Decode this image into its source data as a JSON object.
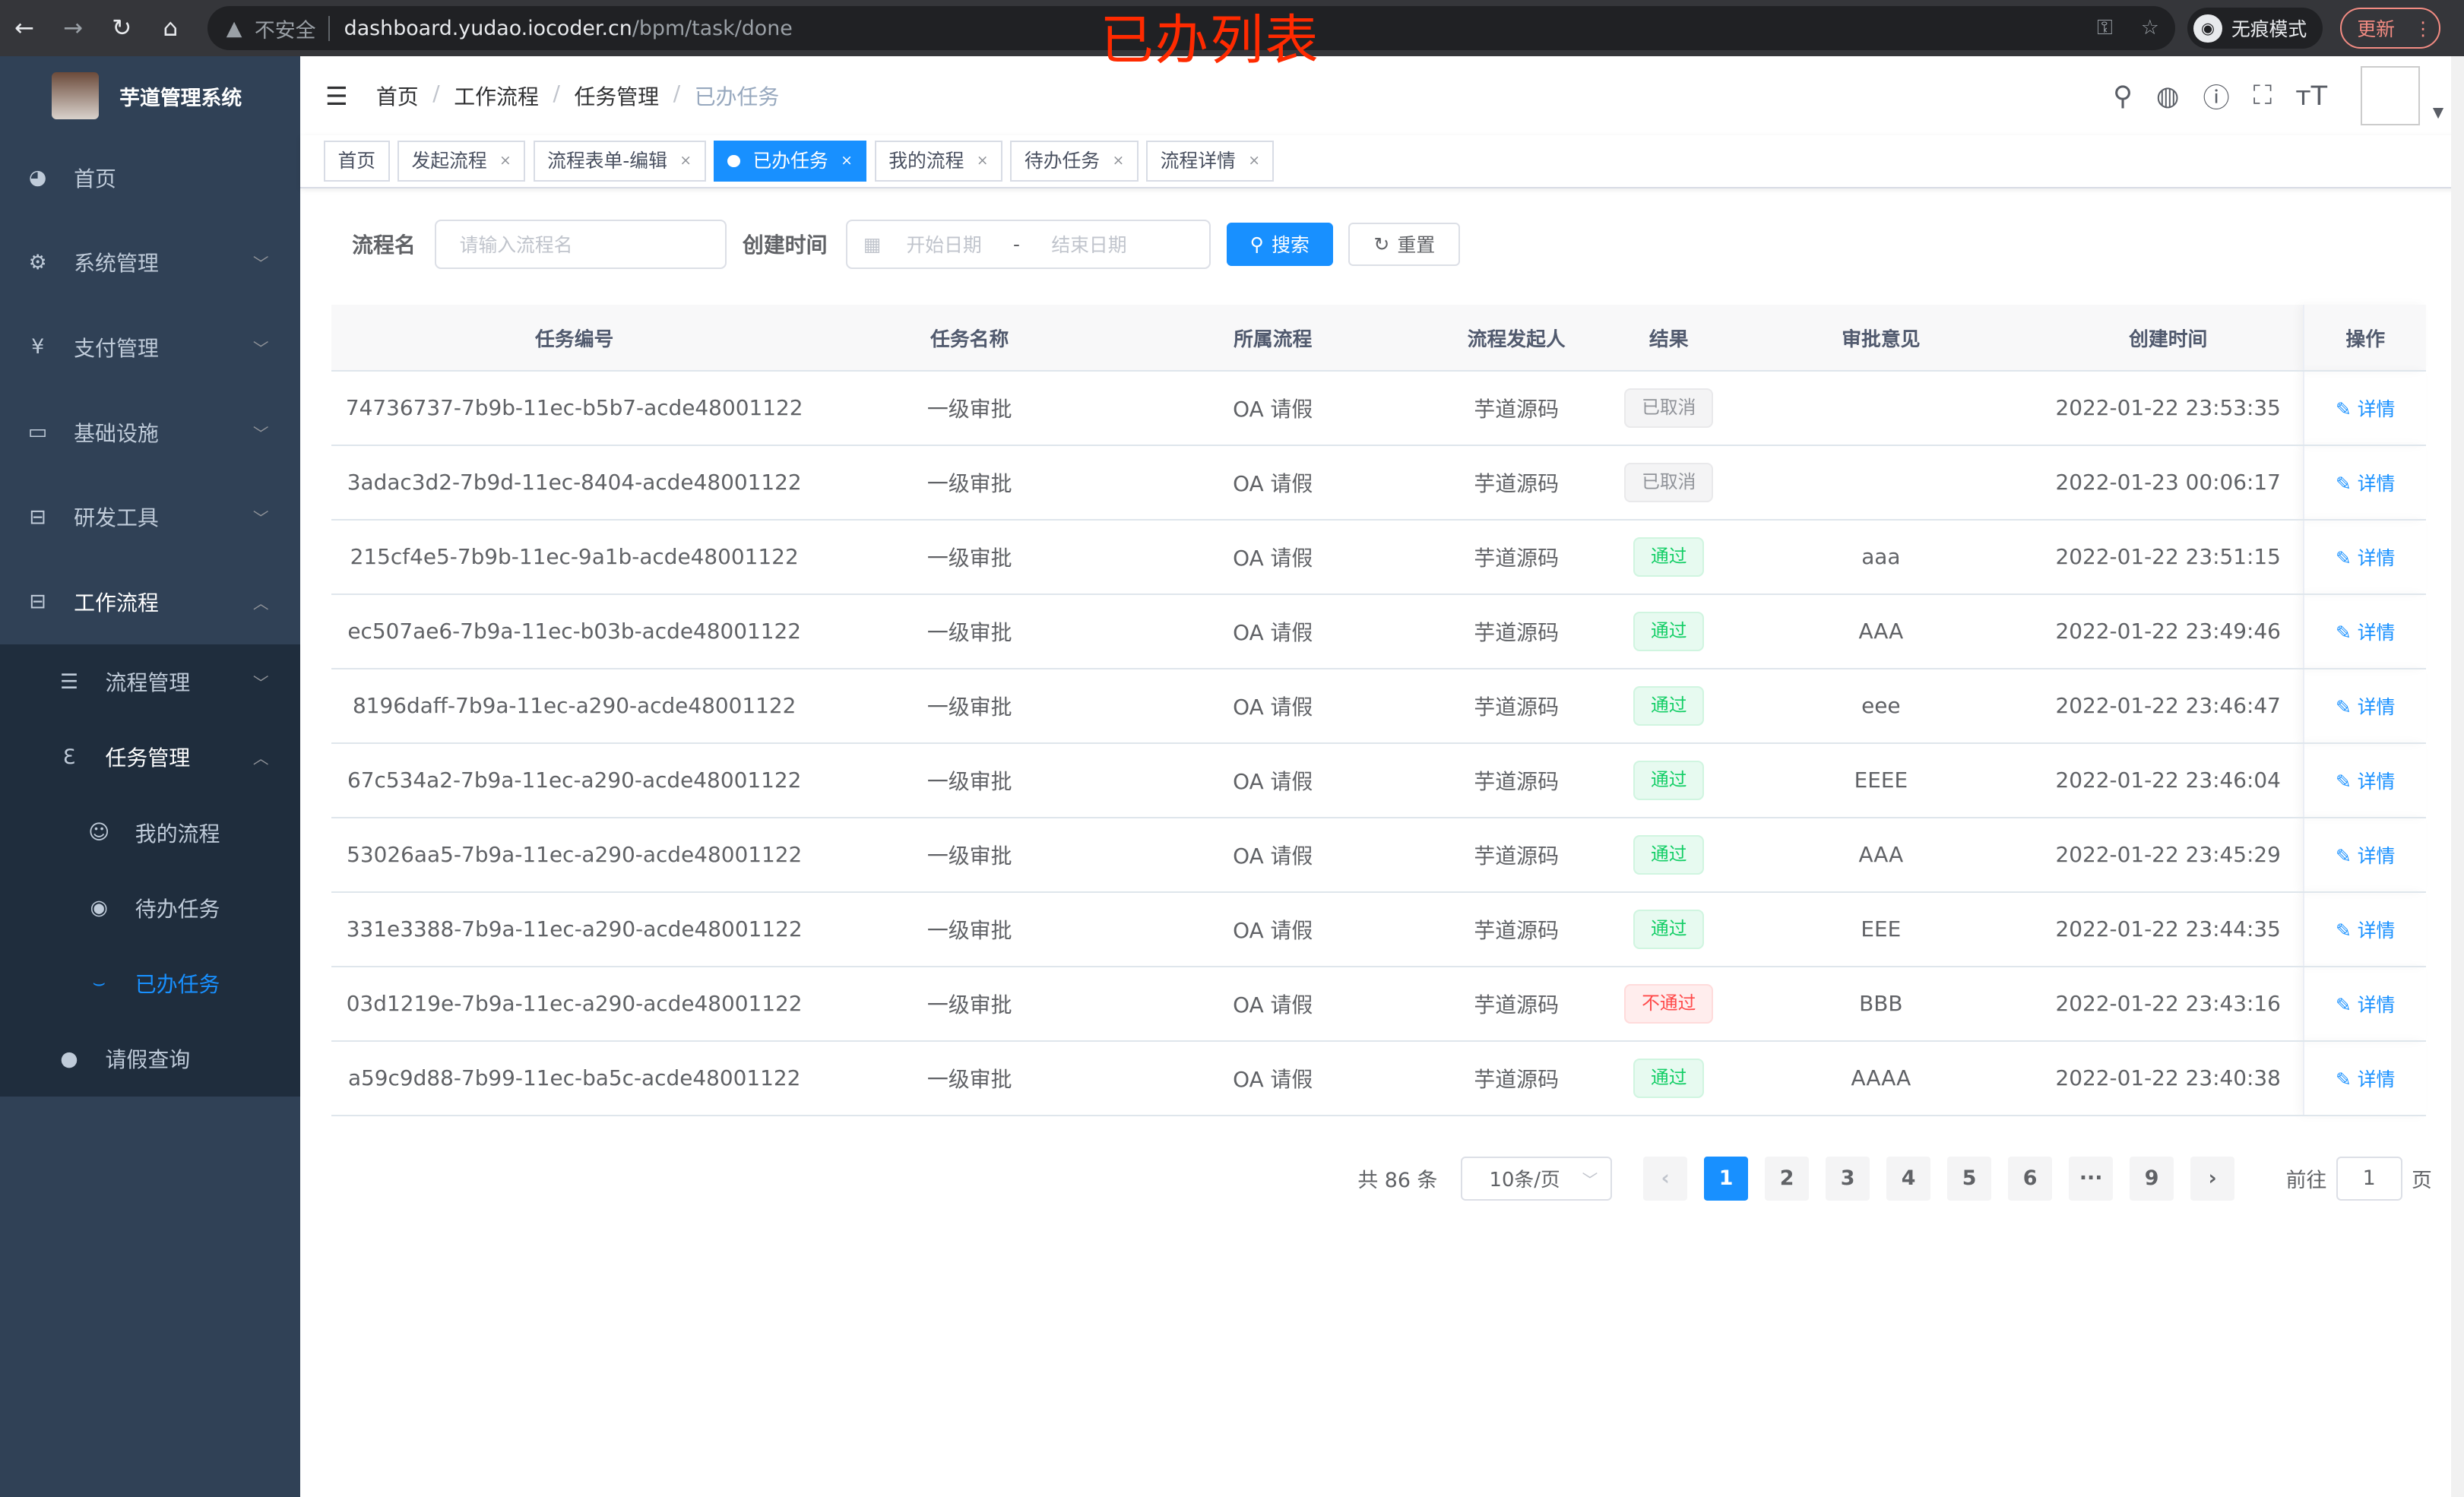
{
  "browser": {
    "insecure": "不安全",
    "host": "dashboard.yudao.iocoder.cn",
    "path": "/bpm/task/done",
    "incognito": "无痕模式",
    "update": "更新"
  },
  "overlay_title": "已办列表",
  "app_title": "芋道管理系统",
  "sidebar": {
    "items": [
      {
        "label": "首页",
        "icon": "dashboard-icon"
      },
      {
        "label": "系统管理",
        "icon": "gear-icon"
      },
      {
        "label": "支付管理",
        "icon": "yen-icon"
      },
      {
        "label": "基础设施",
        "icon": "monitor-icon"
      },
      {
        "label": "研发工具",
        "icon": "toolbox-icon"
      },
      {
        "label": "工作流程",
        "icon": "toolbox-icon"
      }
    ],
    "sub": [
      {
        "label": "流程管理",
        "icon": "list-icon"
      },
      {
        "label": "任务管理",
        "icon": "task-icon"
      },
      {
        "label": "我的流程",
        "icon": "chat-icon"
      },
      {
        "label": "待办任务",
        "icon": "eye-icon"
      },
      {
        "label": "已办任务",
        "icon": "eye-closed-icon"
      },
      {
        "label": "请假查询",
        "icon": "user-icon"
      }
    ]
  },
  "breadcrumb": [
    "首页",
    "工作流程",
    "任务管理",
    "已办任务"
  ],
  "tags": [
    "首页",
    "发起流程",
    "流程表单-编辑",
    "已办任务",
    "我的流程",
    "待办任务",
    "流程详情"
  ],
  "filter": {
    "name_label": "流程名",
    "name_placeholder": "请输入流程名",
    "time_label": "创建时间",
    "start_placeholder": "开始日期",
    "sep": "-",
    "end_placeholder": "结束日期",
    "search": "搜索",
    "reset": "重置"
  },
  "table": {
    "headers": [
      "任务编号",
      "任务名称",
      "所属流程",
      "流程发起人",
      "结果",
      "审批意见",
      "创建时间",
      "操作"
    ],
    "rows": [
      {
        "id": "74736737-7b9b-11ec-b5b7-acde48001122",
        "name": "一级审批",
        "process": "OA 请假",
        "starter": "芋道源码",
        "result": "已取消",
        "status": "cancel",
        "comment": "",
        "time": "2022-01-22 23:53:35",
        "action": "详情"
      },
      {
        "id": "3adac3d2-7b9d-11ec-8404-acde48001122",
        "name": "一级审批",
        "process": "OA 请假",
        "starter": "芋道源码",
        "result": "已取消",
        "status": "cancel",
        "comment": "",
        "time": "2022-01-23 00:06:17",
        "action": "详情"
      },
      {
        "id": "215cf4e5-7b9b-11ec-9a1b-acde48001122",
        "name": "一级审批",
        "process": "OA 请假",
        "starter": "芋道源码",
        "result": "通过",
        "status": "pass",
        "comment": "aaa",
        "time": "2022-01-22 23:51:15",
        "action": "详情"
      },
      {
        "id": "ec507ae6-7b9a-11ec-b03b-acde48001122",
        "name": "一级审批",
        "process": "OA 请假",
        "starter": "芋道源码",
        "result": "通过",
        "status": "pass",
        "comment": "AAA",
        "time": "2022-01-22 23:49:46",
        "action": "详情"
      },
      {
        "id": "8196daff-7b9a-11ec-a290-acde48001122",
        "name": "一级审批",
        "process": "OA 请假",
        "starter": "芋道源码",
        "result": "通过",
        "status": "pass",
        "comment": "eee",
        "time": "2022-01-22 23:46:47",
        "action": "详情"
      },
      {
        "id": "67c534a2-7b9a-11ec-a290-acde48001122",
        "name": "一级审批",
        "process": "OA 请假",
        "starter": "芋道源码",
        "result": "通过",
        "status": "pass",
        "comment": "EEEE",
        "time": "2022-01-22 23:46:04",
        "action": "详情"
      },
      {
        "id": "53026aa5-7b9a-11ec-a290-acde48001122",
        "name": "一级审批",
        "process": "OA 请假",
        "starter": "芋道源码",
        "result": "通过",
        "status": "pass",
        "comment": "AAA",
        "time": "2022-01-22 23:45:29",
        "action": "详情"
      },
      {
        "id": "331e3388-7b9a-11ec-a290-acde48001122",
        "name": "一级审批",
        "process": "OA 请假",
        "starter": "芋道源码",
        "result": "通过",
        "status": "pass",
        "comment": "EEE",
        "time": "2022-01-22 23:44:35",
        "action": "详情"
      },
      {
        "id": "03d1219e-7b9a-11ec-a290-acde48001122",
        "name": "一级审批",
        "process": "OA 请假",
        "starter": "芋道源码",
        "result": "不通过",
        "status": "reject",
        "comment": "BBB",
        "time": "2022-01-22 23:43:16",
        "action": "详情"
      },
      {
        "id": "a59c9d88-7b99-11ec-ba5c-acde48001122",
        "name": "一级审批",
        "process": "OA 请假",
        "starter": "芋道源码",
        "result": "通过",
        "status": "pass",
        "comment": "AAAA",
        "time": "2022-01-22 23:40:38",
        "action": "详情"
      }
    ]
  },
  "pagination": {
    "total": "共 86 条",
    "page_size": "10条/页",
    "pages": [
      "1",
      "2",
      "3",
      "4",
      "5",
      "6",
      "···",
      "9"
    ],
    "current": "1",
    "goto_label": "前往",
    "goto_value": "1",
    "page_suffix": "页"
  },
  "colors": {
    "accent": "#1890ff",
    "sidebar": "#304156",
    "submenu": "#1f2d3d",
    "pass": "#13ce66",
    "reject": "#ff4949",
    "cancel": "#909399"
  }
}
